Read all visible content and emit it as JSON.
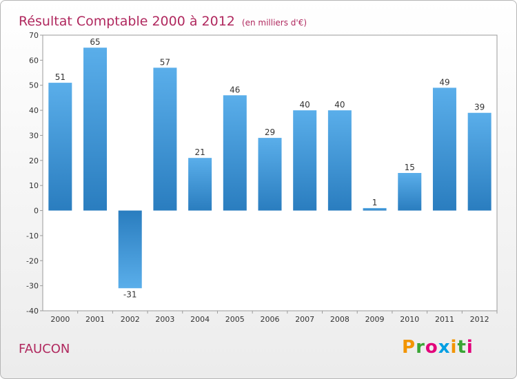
{
  "header": {
    "title": "Résultat Comptable 2000 à 2012",
    "unit": "(en milliers d'€)"
  },
  "footer": {
    "commune": "FAUCON"
  },
  "logo": {
    "text": "Proxiti",
    "letters": [
      {
        "ch": "P",
        "color": "#f29400"
      },
      {
        "ch": "r",
        "color": "#3aa535"
      },
      {
        "ch": "o",
        "color": "#e2007a"
      },
      {
        "ch": "x",
        "color": "#009fe3"
      },
      {
        "ch": "i",
        "color": "#f29400"
      },
      {
        "ch": "t",
        "color": "#3aa535"
      },
      {
        "ch": "i",
        "color": "#e2007a"
      }
    ]
  },
  "chart_data": {
    "type": "bar",
    "title": "Résultat Comptable 2000 à 2012",
    "subtitle": "(en milliers d'€)",
    "categories": [
      "2000",
      "2001",
      "2002",
      "2003",
      "2004",
      "2005",
      "2006",
      "2007",
      "2008",
      "2009",
      "2010",
      "2011",
      "2012"
    ],
    "values": [
      51,
      65,
      -31,
      57,
      21,
      46,
      29,
      40,
      40,
      1,
      15,
      49,
      39
    ],
    "xlabel": "",
    "ylabel": "",
    "ylim": [
      -40,
      70
    ],
    "yticks": [
      70,
      60,
      50,
      40,
      30,
      20,
      10,
      0,
      -10,
      -20,
      -30,
      -40
    ],
    "grid": false,
    "bar_color": "#3d92d6"
  }
}
